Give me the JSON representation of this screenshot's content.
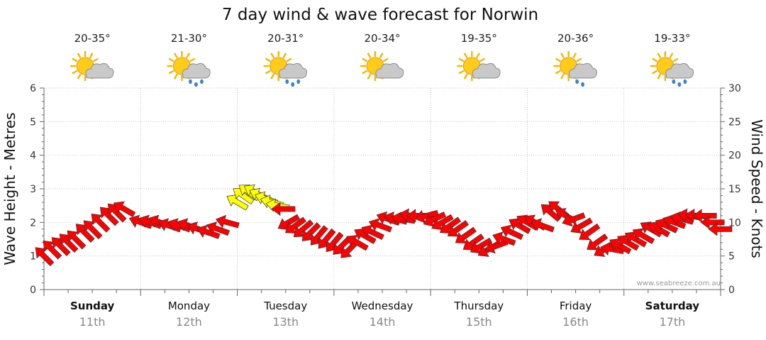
{
  "chart_data": {
    "type": "line",
    "title": "7 day wind & wave forecast for Norwin",
    "ylabel_left": "Wave Height - Metres",
    "ylabel_right": "Wind Speed - Knots",
    "ylim_left": [
      0,
      6
    ],
    "ylim_right": [
      0,
      30
    ],
    "yticks_left": [
      "0",
      "1",
      "2",
      "3",
      "4",
      "5",
      "6"
    ],
    "yticks_right": [
      "0",
      "5",
      "10",
      "15",
      "20",
      "25",
      "30"
    ],
    "grid": true,
    "watermark": "www.seabreeze.com.au",
    "days": [
      {
        "name": "Sunday",
        "date": "11th",
        "temp": "20-35°",
        "weather": "partly-cloudy",
        "bold": true
      },
      {
        "name": "Monday",
        "date": "12th",
        "temp": "21-30°",
        "weather": "showers",
        "bold": false
      },
      {
        "name": "Tuesday",
        "date": "13th",
        "temp": "20-31°",
        "weather": "showers",
        "bold": false
      },
      {
        "name": "Wednesday",
        "date": "14th",
        "temp": "20-34°",
        "weather": "partly-cloudy",
        "bold": false
      },
      {
        "name": "Thursday",
        "date": "15th",
        "temp": "19-35°",
        "weather": "partly-cloudy",
        "bold": false
      },
      {
        "name": "Friday",
        "date": "16th",
        "temp": "20-36°",
        "weather": "light-showers",
        "bold": false
      },
      {
        "name": "Saturday",
        "date": "17th",
        "temp": "19-33°",
        "weather": "showers",
        "bold": true
      }
    ],
    "series": [
      {
        "kind": "wind_arrows",
        "unit": "knots",
        "color_normal": "#ff0000",
        "color_strong": "#ffff00",
        "points": [
          {
            "t": 0.0,
            "knots": 5,
            "dir": 225
          },
          {
            "t": 0.08,
            "knots": 6,
            "dir": 225
          },
          {
            "t": 0.17,
            "knots": 6.5,
            "dir": 225
          },
          {
            "t": 0.25,
            "knots": 7,
            "dir": 225
          },
          {
            "t": 0.33,
            "knots": 7.5,
            "dir": 225
          },
          {
            "t": 0.42,
            "knots": 8.5,
            "dir": 225
          },
          {
            "t": 0.5,
            "knots": 9,
            "dir": 225
          },
          {
            "t": 0.58,
            "knots": 10,
            "dir": 225
          },
          {
            "t": 0.67,
            "knots": 11,
            "dir": 225
          },
          {
            "t": 0.75,
            "knots": 11.5,
            "dir": 225
          },
          {
            "t": 0.83,
            "knots": 12,
            "dir": 240
          },
          {
            "t": 1.0,
            "knots": 10,
            "dir": 250
          },
          {
            "t": 1.1,
            "knots": 10,
            "dir": 250
          },
          {
            "t": 1.2,
            "knots": 10,
            "dir": 250
          },
          {
            "t": 1.3,
            "knots": 9.5,
            "dir": 250
          },
          {
            "t": 1.4,
            "knots": 9.5,
            "dir": 250
          },
          {
            "t": 1.5,
            "knots": 9.5,
            "dir": 250
          },
          {
            "t": 1.6,
            "knots": 9,
            "dir": 250
          },
          {
            "t": 1.7,
            "knots": 8.5,
            "dir": 250
          },
          {
            "t": 1.8,
            "knots": 9,
            "dir": 250
          },
          {
            "t": 1.9,
            "knots": 10,
            "dir": 255
          },
          {
            "t": 2.0,
            "knots": 13,
            "dir": 240
          },
          {
            "t": 2.06,
            "knots": 14,
            "dir": 235
          },
          {
            "t": 2.12,
            "knots": 14.5,
            "dir": 235
          },
          {
            "t": 2.18,
            "knots": 14.5,
            "dir": 240
          },
          {
            "t": 2.24,
            "knots": 14,
            "dir": 245
          },
          {
            "t": 2.3,
            "knots": 13.5,
            "dir": 250
          },
          {
            "t": 2.36,
            "knots": 13,
            "dir": 255
          },
          {
            "t": 2.42,
            "knots": 12.5,
            "dir": 260
          },
          {
            "t": 2.48,
            "knots": 12,
            "dir": 270
          },
          {
            "t": 2.53,
            "knots": 10,
            "dir": 300
          },
          {
            "t": 2.6,
            "knots": 9.5,
            "dir": 305
          },
          {
            "t": 2.68,
            "knots": 9,
            "dir": 310
          },
          {
            "t": 2.76,
            "knots": 8.5,
            "dir": 315
          },
          {
            "t": 2.84,
            "knots": 8,
            "dir": 320
          },
          {
            "t": 2.92,
            "knots": 7.5,
            "dir": 320
          },
          {
            "t": 3.0,
            "knots": 7,
            "dir": 320
          },
          {
            "t": 3.08,
            "knots": 6.5,
            "dir": 315
          },
          {
            "t": 3.16,
            "knots": 6,
            "dir": 315
          },
          {
            "t": 3.24,
            "knots": 7,
            "dir": 240
          },
          {
            "t": 3.32,
            "knots": 8,
            "dir": 240
          },
          {
            "t": 3.4,
            "knots": 8.5,
            "dir": 245
          },
          {
            "t": 3.48,
            "knots": 9.5,
            "dir": 250
          },
          {
            "t": 3.56,
            "knots": 10.5,
            "dir": 250
          },
          {
            "t": 3.64,
            "knots": 10.5,
            "dir": 255
          },
          {
            "t": 3.72,
            "knots": 10.5,
            "dir": 260
          },
          {
            "t": 3.8,
            "knots": 11,
            "dir": 260
          },
          {
            "t": 3.88,
            "knots": 11,
            "dir": 270
          },
          {
            "t": 3.96,
            "knots": 11,
            "dir": 285
          },
          {
            "t": 4.04,
            "knots": 10.5,
            "dir": 295
          },
          {
            "t": 4.12,
            "knots": 10,
            "dir": 300
          },
          {
            "t": 4.2,
            "knots": 9.5,
            "dir": 305
          },
          {
            "t": 4.28,
            "knots": 9,
            "dir": 305
          },
          {
            "t": 4.36,
            "knots": 8,
            "dir": 305
          },
          {
            "t": 4.44,
            "knots": 7,
            "dir": 305
          },
          {
            "t": 4.52,
            "knots": 6.5,
            "dir": 300
          },
          {
            "t": 4.6,
            "knots": 6,
            "dir": 300
          },
          {
            "t": 4.68,
            "knots": 6.5,
            "dir": 290
          },
          {
            "t": 4.76,
            "knots": 7.5,
            "dir": 250
          },
          {
            "t": 4.84,
            "knots": 8.5,
            "dir": 245
          },
          {
            "t": 4.92,
            "knots": 9.5,
            "dir": 240
          },
          {
            "t": 5.0,
            "knots": 10,
            "dir": 240
          },
          {
            "t": 5.08,
            "knots": 10,
            "dir": 240
          },
          {
            "t": 5.16,
            "knots": 9.5,
            "dir": 250
          },
          {
            "t": 5.24,
            "knots": 11.5,
            "dir": 230
          },
          {
            "t": 5.32,
            "knots": 12,
            "dir": 232
          },
          {
            "t": 5.4,
            "knots": 11,
            "dir": 240
          },
          {
            "t": 5.48,
            "knots": 10.5,
            "dir": 290
          },
          {
            "t": 5.56,
            "knots": 9.5,
            "dir": 300
          },
          {
            "t": 5.64,
            "knots": 8.5,
            "dir": 305
          },
          {
            "t": 5.72,
            "knots": 7,
            "dir": 305
          },
          {
            "t": 5.8,
            "knots": 6,
            "dir": 300
          },
          {
            "t": 5.88,
            "knots": 6,
            "dir": 260
          },
          {
            "t": 5.96,
            "knots": 6.5,
            "dir": 240
          },
          {
            "t": 6.04,
            "knots": 7,
            "dir": 240
          },
          {
            "t": 6.12,
            "knots": 7.5,
            "dir": 240
          },
          {
            "t": 6.2,
            "knots": 8,
            "dir": 240
          },
          {
            "t": 6.28,
            "knots": 9,
            "dir": 240
          },
          {
            "t": 6.36,
            "knots": 9,
            "dir": 240
          },
          {
            "t": 6.44,
            "knots": 9.5,
            "dir": 245
          },
          {
            "t": 6.52,
            "knots": 10,
            "dir": 250
          },
          {
            "t": 6.6,
            "knots": 10.5,
            "dir": 255
          },
          {
            "t": 6.68,
            "knots": 11,
            "dir": 260
          },
          {
            "t": 6.76,
            "knots": 11,
            "dir": 265
          },
          {
            "t": 6.84,
            "knots": 11,
            "dir": 270
          },
          {
            "t": 6.92,
            "knots": 10,
            "dir": 270
          },
          {
            "t": 7.0,
            "knots": 9,
            "dir": 270
          }
        ]
      }
    ]
  }
}
